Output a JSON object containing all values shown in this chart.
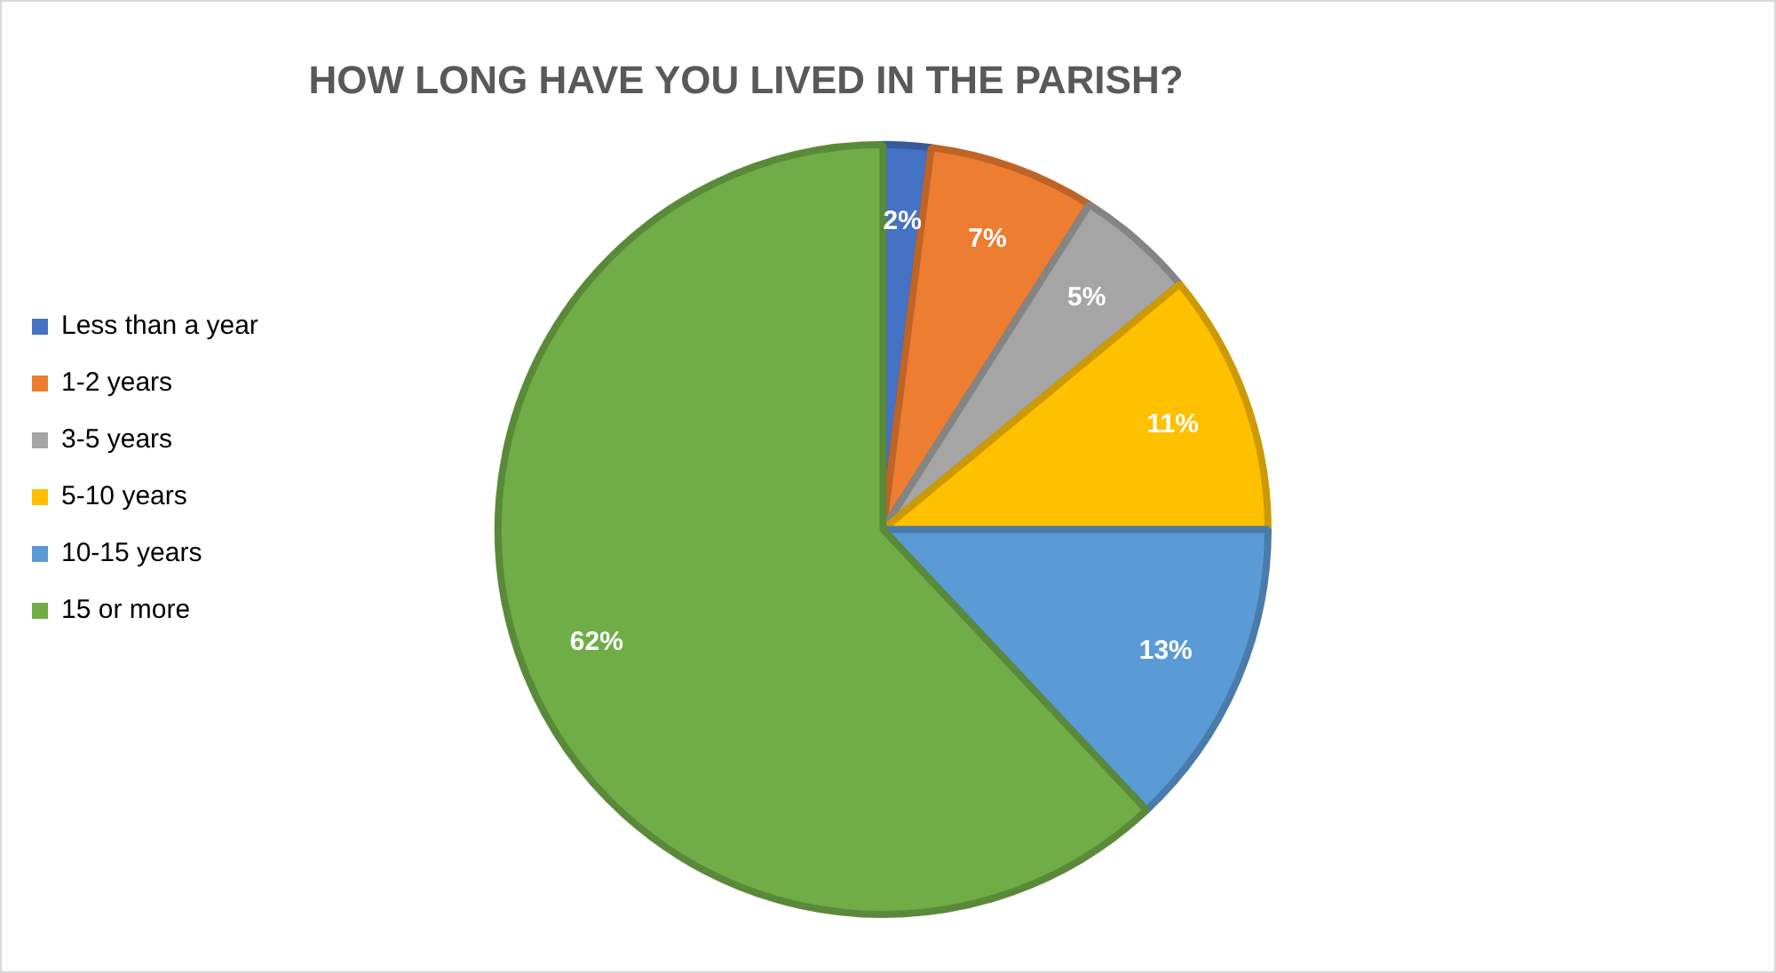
{
  "chart_data": {
    "type": "pie",
    "title": "HOW LONG HAVE YOU LIVED IN THE PARISH?",
    "categories": [
      "Less than a year",
      "1-2 years",
      "3-5 years",
      "5-10 years",
      "10-15 years",
      "15 or more"
    ],
    "values": [
      2,
      7,
      5,
      11,
      13,
      62
    ],
    "value_labels": [
      "2%",
      "7%",
      "5%",
      "11%",
      "13%",
      "62%"
    ],
    "colors": [
      "#4472c4",
      "#ed7d31",
      "#a5a5a5",
      "#ffc000",
      "#5b9bd5",
      "#70ad47"
    ],
    "legend": "left"
  }
}
